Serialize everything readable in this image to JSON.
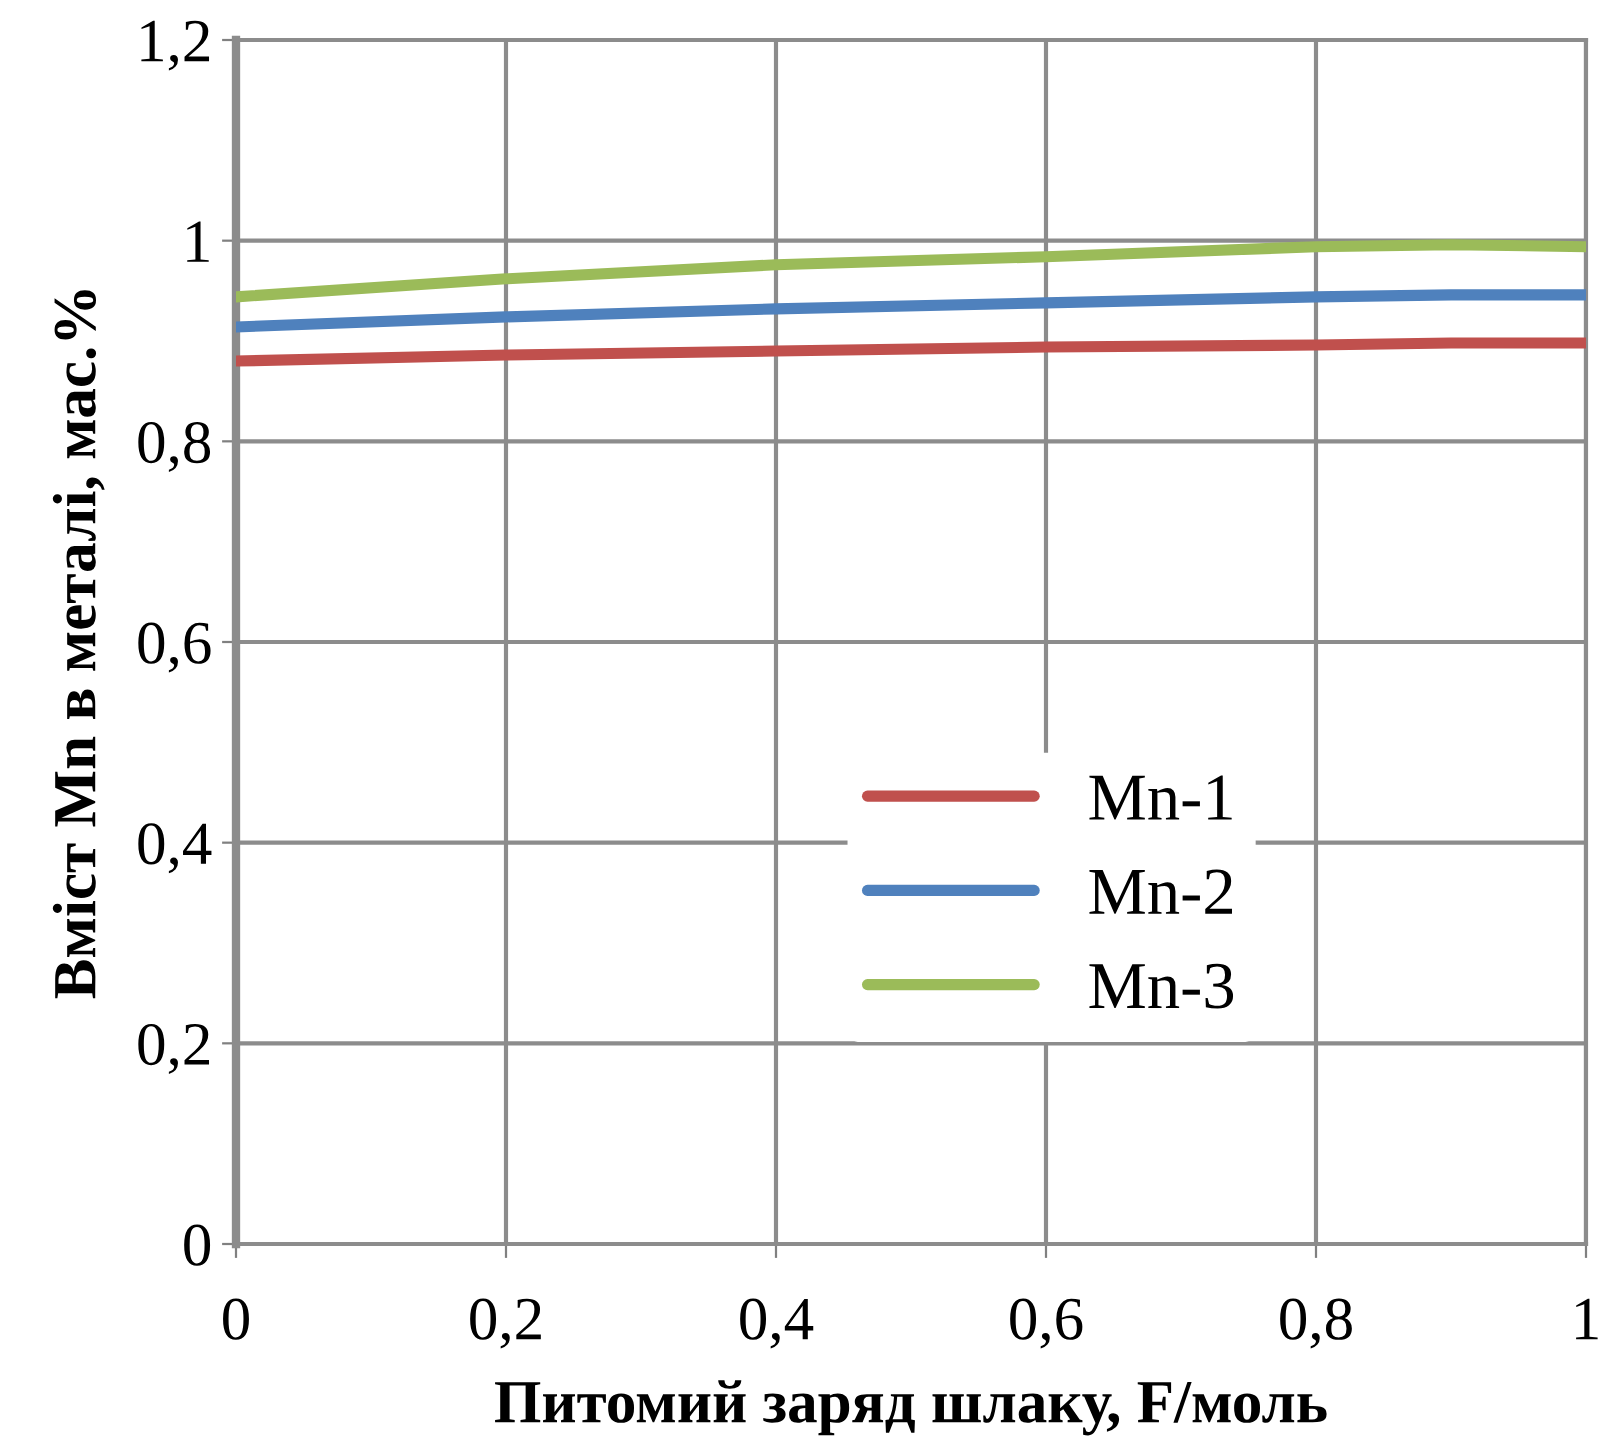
{
  "chart_data": {
    "type": "line",
    "xlabel": "Питомий заряд шлаку, F/моль",
    "ylabel": "Вміст Mn в металі, мас.%",
    "x": [
      0,
      0.2,
      0.4,
      0.6,
      0.8,
      0.9,
      1
    ],
    "series": [
      {
        "name": "Mn-1",
        "color": "#c0504d",
        "values": [
          0.88,
          0.886,
          0.89,
          0.894,
          0.896,
          0.898,
          0.898
        ]
      },
      {
        "name": "Mn-2",
        "color": "#4f81bd",
        "values": [
          0.914,
          0.924,
          0.932,
          0.938,
          0.944,
          0.946,
          0.946
        ]
      },
      {
        "name": "Mn-3",
        "color": "#9bbb59",
        "values": [
          0.944,
          0.962,
          0.976,
          0.984,
          0.994,
          0.996,
          0.994
        ]
      }
    ],
    "xlim": [
      0,
      1
    ],
    "xticks": [
      0,
      {
        "value": 0.2,
        "label": "0,2"
      },
      {
        "value": 0.4,
        "label": "0,4"
      },
      {
        "value": 0.6,
        "label": "0,6"
      },
      {
        "value": 0.8,
        "label": "0,8"
      },
      1
    ],
    "ylim": [
      0,
      1.2
    ],
    "yticks": [
      0,
      {
        "value": 0.2,
        "label": "0,2"
      },
      {
        "value": 0.4,
        "label": "0,4"
      },
      {
        "value": 0.6,
        "label": "0,6"
      },
      {
        "value": 0.8,
        "label": "0,8"
      },
      1,
      {
        "value": 1.2,
        "label": "1,2"
      }
    ],
    "grid": true,
    "legend": "lower right",
    "marker": "none",
    "line_style": "solid"
  }
}
